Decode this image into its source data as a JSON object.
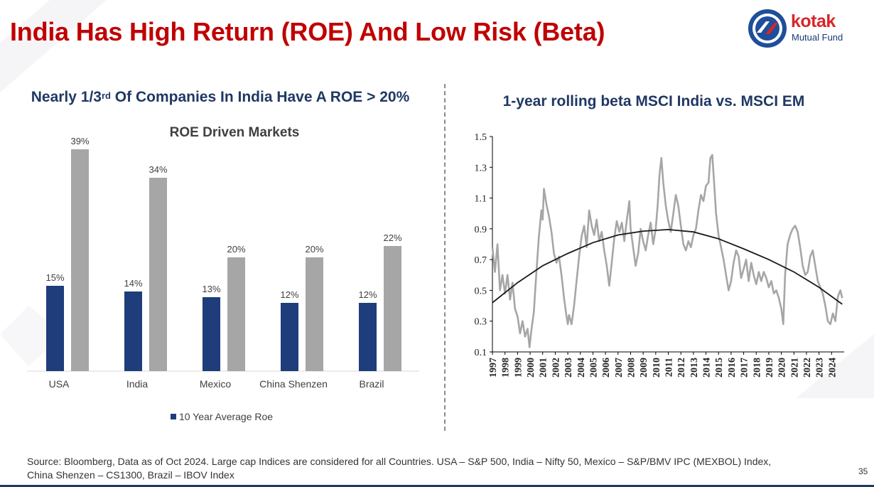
{
  "slide": {
    "title": "India Has High Return (ROE) And Low Risk (Beta)",
    "page_number": "35",
    "footnote": "Source: Bloomberg, Data as of Oct 2024. Large cap Indices are considered for all Countries. USA – S&P 500, India – Nifty 50, Mexico – S&P/BMV IPC (MEXBOL) Index, China Shenzen – CS1300, Brazil – IBOV Index"
  },
  "logo": {
    "word": "kotak",
    "sub": "Mutual Fund"
  },
  "left_panel": {
    "heading_pre": "Nearly 1/3",
    "heading_sup": "rd",
    "heading_post": " Of Companies In India Have A ROE > 20%"
  },
  "right_panel": {
    "heading": "1-year rolling beta MSCI India vs. MSCI EM"
  },
  "colors": {
    "title_red": "#c00000",
    "heading_navy": "#1f3864",
    "bar_blue": "#1f3d7a",
    "bar_gray": "#a6a6a6",
    "beta_line": "#a6a6a6",
    "trend_line": "#1a1a1a"
  },
  "chart_data": [
    {
      "type": "bar",
      "title": "ROE Driven Markets",
      "categories": [
        "USA",
        "India",
        "Mexico",
        "China Shenzen",
        "Brazil"
      ],
      "series": [
        {
          "name": "10 Year Average Roe",
          "values": [
            15,
            14,
            13,
            12,
            12
          ],
          "labels": [
            "15%",
            "14%",
            "13%",
            "12%",
            "12%"
          ]
        },
        {
          "values": [
            39,
            34,
            20,
            20,
            22
          ],
          "labels": [
            "39%",
            "34%",
            "20%",
            "20%",
            "22%"
          ]
        }
      ],
      "ylim": [
        0,
        40
      ],
      "legend": "bottom",
      "grid": false
    },
    {
      "type": "line",
      "x": [
        1997,
        1998,
        1999,
        2000,
        2001,
        2002,
        2003,
        2004,
        2005,
        2006,
        2007,
        2008,
        2009,
        2010,
        2011,
        2012,
        2013,
        2014,
        2015,
        2016,
        2017,
        2018,
        2019,
        2020,
        2021,
        2022,
        2023,
        2024
      ],
      "x_tick_labels": [
        "1997",
        "1998",
        "1999",
        "2000",
        "2001",
        "2002",
        "2003",
        "2004",
        "2005",
        "2006",
        "2007",
        "2008",
        "2009",
        "2010",
        "2011",
        "2012",
        "2013",
        "2014",
        "2015",
        "2016",
        "2017",
        "2018",
        "2019",
        "2020",
        "2021",
        "2022",
        "2023",
        "2024"
      ],
      "y_ticks": [
        0.1,
        0.3,
        0.5,
        0.7,
        0.9,
        1.1,
        1.3,
        1.5
      ],
      "y_tick_labels": [
        "0.1",
        "0.3",
        "0.5",
        "0.7",
        "0.9",
        "1.1",
        "1.3",
        "1.5"
      ],
      "ylim": [
        0.1,
        1.5
      ],
      "xlim": [
        1997,
        2025
      ],
      "grid": false,
      "series": [
        {
          "values_xy": [
            [
              1997.0,
              0.78
            ],
            [
              1997.2,
              0.62
            ],
            [
              1997.4,
              0.8
            ],
            [
              1997.6,
              0.5
            ],
            [
              1997.8,
              0.6
            ],
            [
              1998.0,
              0.48
            ],
            [
              1998.2,
              0.6
            ],
            [
              1998.4,
              0.44
            ],
            [
              1998.6,
              0.55
            ],
            [
              1998.8,
              0.38
            ],
            [
              1999.0,
              0.33
            ],
            [
              1999.2,
              0.22
            ],
            [
              1999.4,
              0.3
            ],
            [
              1999.6,
              0.2
            ],
            [
              1999.8,
              0.25
            ],
            [
              1999.95,
              0.13
            ],
            [
              2000.1,
              0.24
            ],
            [
              2000.3,
              0.36
            ],
            [
              2000.5,
              0.62
            ],
            [
              2000.7,
              0.85
            ],
            [
              2000.9,
              1.02
            ],
            [
              2001.0,
              0.96
            ],
            [
              2001.1,
              1.16
            ],
            [
              2001.3,
              1.06
            ],
            [
              2001.5,
              0.98
            ],
            [
              2001.7,
              0.88
            ],
            [
              2001.9,
              0.74
            ],
            [
              2002.1,
              0.68
            ],
            [
              2002.3,
              0.72
            ],
            [
              2002.5,
              0.6
            ],
            [
              2002.7,
              0.45
            ],
            [
              2002.9,
              0.33
            ],
            [
              2003.0,
              0.28
            ],
            [
              2003.1,
              0.34
            ],
            [
              2003.3,
              0.28
            ],
            [
              2003.5,
              0.4
            ],
            [
              2003.7,
              0.56
            ],
            [
              2003.9,
              0.72
            ],
            [
              2004.1,
              0.85
            ],
            [
              2004.3,
              0.92
            ],
            [
              2004.5,
              0.78
            ],
            [
              2004.7,
              1.02
            ],
            [
              2004.9,
              0.92
            ],
            [
              2005.1,
              0.86
            ],
            [
              2005.3,
              0.96
            ],
            [
              2005.5,
              0.82
            ],
            [
              2005.7,
              0.88
            ],
            [
              2005.9,
              0.76
            ],
            [
              2006.1,
              0.66
            ],
            [
              2006.3,
              0.53
            ],
            [
              2006.5,
              0.68
            ],
            [
              2006.7,
              0.84
            ],
            [
              2006.9,
              0.95
            ],
            [
              2007.1,
              0.88
            ],
            [
              2007.3,
              0.94
            ],
            [
              2007.5,
              0.82
            ],
            [
              2007.7,
              0.96
            ],
            [
              2007.9,
              1.08
            ],
            [
              2008.0,
              0.9
            ],
            [
              2008.2,
              0.78
            ],
            [
              2008.4,
              0.66
            ],
            [
              2008.6,
              0.74
            ],
            [
              2008.8,
              0.9
            ],
            [
              2009.0,
              0.82
            ],
            [
              2009.2,
              0.76
            ],
            [
              2009.4,
              0.86
            ],
            [
              2009.6,
              0.94
            ],
            [
              2009.8,
              0.8
            ],
            [
              2010.0,
              0.9
            ],
            [
              2010.15,
              1.05
            ],
            [
              2010.3,
              1.25
            ],
            [
              2010.45,
              1.36
            ],
            [
              2010.6,
              1.2
            ],
            [
              2010.8,
              1.05
            ],
            [
              2011.0,
              0.95
            ],
            [
              2011.2,
              0.88
            ],
            [
              2011.4,
              1.0
            ],
            [
              2011.6,
              1.12
            ],
            [
              2011.8,
              1.05
            ],
            [
              2012.0,
              0.92
            ],
            [
              2012.2,
              0.8
            ],
            [
              2012.4,
              0.76
            ],
            [
              2012.6,
              0.82
            ],
            [
              2012.8,
              0.78
            ],
            [
              2013.0,
              0.86
            ],
            [
              2013.2,
              0.9
            ],
            [
              2013.4,
              1.02
            ],
            [
              2013.6,
              1.12
            ],
            [
              2013.8,
              1.08
            ],
            [
              2014.0,
              1.18
            ],
            [
              2014.2,
              1.2
            ],
            [
              2014.35,
              1.36
            ],
            [
              2014.5,
              1.38
            ],
            [
              2014.65,
              1.2
            ],
            [
              2014.8,
              1.0
            ],
            [
              2015.0,
              0.86
            ],
            [
              2015.2,
              0.78
            ],
            [
              2015.4,
              0.7
            ],
            [
              2015.6,
              0.6
            ],
            [
              2015.8,
              0.5
            ],
            [
              2016.0,
              0.56
            ],
            [
              2016.2,
              0.68
            ],
            [
              2016.4,
              0.76
            ],
            [
              2016.6,
              0.72
            ],
            [
              2016.8,
              0.58
            ],
            [
              2017.0,
              0.64
            ],
            [
              2017.2,
              0.7
            ],
            [
              2017.4,
              0.56
            ],
            [
              2017.6,
              0.68
            ],
            [
              2017.8,
              0.6
            ],
            [
              2018.0,
              0.54
            ],
            [
              2018.2,
              0.62
            ],
            [
              2018.4,
              0.56
            ],
            [
              2018.6,
              0.62
            ],
            [
              2018.8,
              0.58
            ],
            [
              2019.0,
              0.52
            ],
            [
              2019.2,
              0.56
            ],
            [
              2019.4,
              0.48
            ],
            [
              2019.6,
              0.5
            ],
            [
              2019.8,
              0.45
            ],
            [
              2020.0,
              0.38
            ],
            [
              2020.15,
              0.28
            ],
            [
              2020.3,
              0.6
            ],
            [
              2020.5,
              0.8
            ],
            [
              2020.7,
              0.86
            ],
            [
              2020.9,
              0.9
            ],
            [
              2021.1,
              0.92
            ],
            [
              2021.3,
              0.88
            ],
            [
              2021.5,
              0.78
            ],
            [
              2021.7,
              0.66
            ],
            [
              2021.9,
              0.6
            ],
            [
              2022.1,
              0.62
            ],
            [
              2022.3,
              0.72
            ],
            [
              2022.5,
              0.76
            ],
            [
              2022.7,
              0.66
            ],
            [
              2022.9,
              0.56
            ],
            [
              2023.1,
              0.52
            ],
            [
              2023.3,
              0.48
            ],
            [
              2023.5,
              0.4
            ],
            [
              2023.7,
              0.3
            ],
            [
              2023.9,
              0.28
            ],
            [
              2024.1,
              0.35
            ],
            [
              2024.3,
              0.3
            ],
            [
              2024.5,
              0.46
            ],
            [
              2024.7,
              0.5
            ],
            [
              2024.85,
              0.45
            ]
          ]
        },
        {
          "values_xy": [
            [
              1997,
              0.42
            ],
            [
              1999,
              0.55
            ],
            [
              2001,
              0.66
            ],
            [
              2003,
              0.74
            ],
            [
              2005,
              0.81
            ],
            [
              2007,
              0.86
            ],
            [
              2009,
              0.885
            ],
            [
              2011,
              0.895
            ],
            [
              2013,
              0.88
            ],
            [
              2015,
              0.835
            ],
            [
              2017,
              0.77
            ],
            [
              2019,
              0.7
            ],
            [
              2021,
              0.62
            ],
            [
              2023,
              0.52
            ],
            [
              2024.85,
              0.41
            ]
          ]
        }
      ]
    }
  ]
}
